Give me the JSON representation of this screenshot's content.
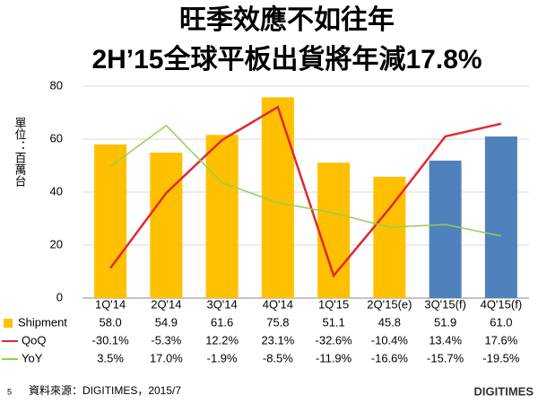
{
  "chart_data": {
    "type": "combo",
    "title": "旺季效應不如往年",
    "subtitle": "2H’15全球平板出貨將年減17.8%",
    "y_label": "單位：百萬台",
    "categories": [
      "1Q'14",
      "2Q'14",
      "3Q'14",
      "4Q'14",
      "1Q'15",
      "2Q'15(e)",
      "3Q'15(f)",
      "4Q'15(f)"
    ],
    "ylim": [
      0,
      80
    ],
    "yticks": [
      0,
      20,
      40,
      60,
      80
    ],
    "y2lim": [
      -40,
      30
    ],
    "grid": true,
    "series": [
      {
        "name": "Shipment",
        "kind": "bar",
        "color": "#FFC000",
        "colors": [
          "#FFC000",
          "#FFC000",
          "#FFC000",
          "#FFC000",
          "#FFC000",
          "#FFC000",
          "#4F81BD",
          "#4F81BD"
        ],
        "values": [
          58.0,
          54.9,
          61.6,
          75.8,
          51.1,
          45.8,
          51.9,
          61.0
        ],
        "value_labels": [
          "58.0",
          "54.9",
          "61.6",
          "75.8",
          "51.1",
          "45.8",
          "51.9",
          "61.0"
        ]
      },
      {
        "name": "QoQ",
        "kind": "line",
        "axis": "y2",
        "color": "#E0292F",
        "values": [
          -30.1,
          -5.3,
          12.2,
          23.1,
          -32.6,
          -10.4,
          13.4,
          17.6
        ],
        "value_labels": [
          "-30.1%",
          "-5.3%",
          "12.2%",
          "23.1%",
          "-32.6%",
          "-10.4%",
          "13.4%",
          "17.6%"
        ]
      },
      {
        "name": "YoY",
        "kind": "line",
        "axis": "y2",
        "color": "#92D050",
        "values": [
          3.5,
          17.0,
          -1.9,
          -8.5,
          -11.9,
          -16.6,
          -15.7,
          -19.5
        ],
        "value_labels": [
          "3.5%",
          "17.0%",
          "-1.9%",
          "-8.5%",
          "-11.9%",
          "-16.6%",
          "-15.7%",
          "-19.5%"
        ]
      }
    ]
  },
  "footer": {
    "page": "5",
    "source": "資料來源：DIGITIMES，2015/7",
    "logo": "DIGITIMES"
  }
}
